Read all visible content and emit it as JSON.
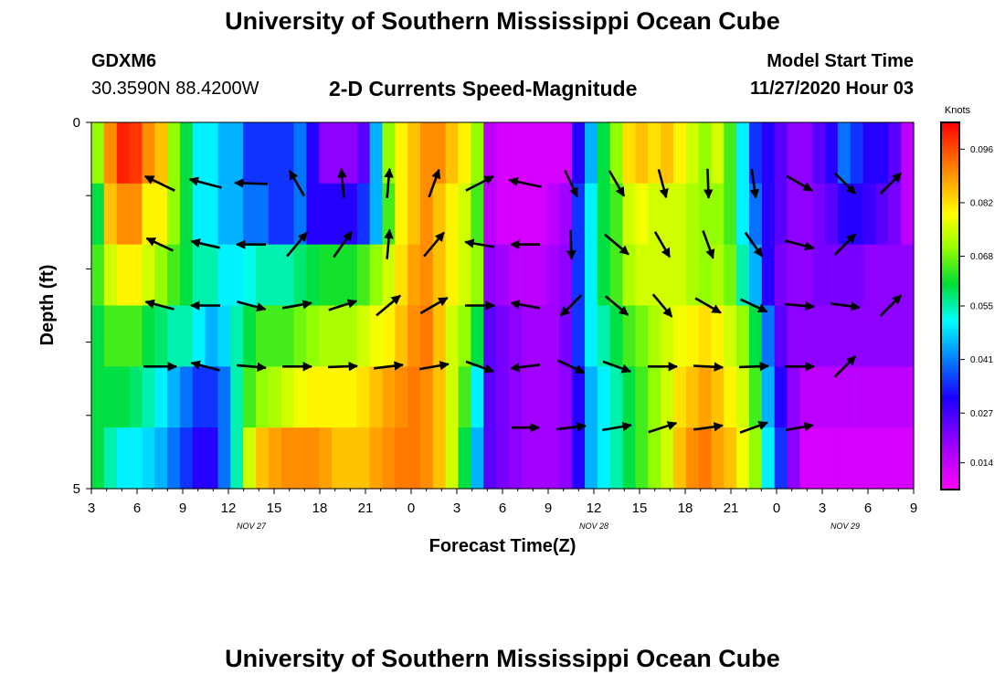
{
  "header": {
    "title": "University of Southern Mississippi Ocean Cube",
    "station_id": "GDXM6",
    "coords": "30.3590N 88.4200W",
    "plot_title": "2-D Currents Speed-Magnitude",
    "model_start_label": "Model Start Time",
    "model_start_value": "11/27/2020 Hour 03"
  },
  "footer": {
    "title": "University of Southern Mississippi Ocean Cube"
  },
  "chart_data": {
    "type": "heatmap",
    "title": "2-D Currents Speed-Magnitude",
    "xlabel": "Forecast Time(Z)",
    "ylabel": "Depth (ft)",
    "x_tick_labels": [
      "3",
      "6",
      "9",
      "12",
      "15",
      "18",
      "21",
      "0",
      "3",
      "6",
      "9",
      "12",
      "15",
      "18",
      "21",
      "0",
      "3",
      "6",
      "9"
    ],
    "y_tick_labels": [
      "0",
      "5"
    ],
    "ylim": [
      0,
      5
    ],
    "hours_span": 54,
    "date_labels": [
      {
        "text": "NOV 27",
        "hour": 10.5
      },
      {
        "text": "NOV 28",
        "hour": 33
      },
      {
        "text": "NOV 29",
        "hour": 49.5
      }
    ],
    "colorbar": {
      "label": "Knots",
      "min": 0.007,
      "max": 0.103,
      "tick_values": [
        "0.096",
        "0.082",
        "0.068",
        "0.055",
        "0.041",
        "0.027",
        "0.014"
      ]
    },
    "speed_rows": [
      [
        0.07,
        0.09,
        0.1,
        0.098,
        0.09,
        0.085,
        0.07,
        0.06,
        0.05,
        0.05,
        0.045,
        0.045,
        0.035,
        0.035,
        0.035,
        0.035,
        0.04,
        0.03,
        0.02,
        0.02,
        0.02,
        0.025,
        0.045,
        0.07,
        0.08,
        0.085,
        0.09,
        0.09,
        0.085,
        0.08,
        0.07,
        0.015,
        0.012,
        0.012,
        0.012,
        0.012,
        0.012,
        0.012,
        0.03,
        0.045,
        0.06,
        0.07,
        0.082,
        0.085,
        0.082,
        0.085,
        0.08,
        0.075,
        0.07,
        0.075,
        0.065,
        0.05,
        0.035,
        0.03,
        0.025,
        0.02,
        0.02,
        0.025,
        0.03,
        0.04,
        0.035,
        0.03,
        0.03,
        0.025,
        0.015
      ],
      [
        0.06,
        0.085,
        0.09,
        0.09,
        0.08,
        0.08,
        0.07,
        0.06,
        0.05,
        0.05,
        0.045,
        0.045,
        0.04,
        0.04,
        0.035,
        0.035,
        0.04,
        0.03,
        0.03,
        0.03,
        0.03,
        0.035,
        0.045,
        0.065,
        0.08,
        0.085,
        0.09,
        0.085,
        0.08,
        0.075,
        0.065,
        0.015,
        0.012,
        0.012,
        0.012,
        0.012,
        0.015,
        0.018,
        0.035,
        0.05,
        0.06,
        0.065,
        0.075,
        0.078,
        0.075,
        0.075,
        0.075,
        0.072,
        0.07,
        0.07,
        0.065,
        0.05,
        0.04,
        0.03,
        0.025,
        0.02,
        0.02,
        0.022,
        0.025,
        0.03,
        0.03,
        0.028,
        0.025,
        0.022,
        0.015
      ],
      [
        0.065,
        0.075,
        0.08,
        0.08,
        0.075,
        0.07,
        0.065,
        0.06,
        0.055,
        0.055,
        0.05,
        0.05,
        0.052,
        0.055,
        0.055,
        0.055,
        0.058,
        0.06,
        0.062,
        0.062,
        0.062,
        0.065,
        0.07,
        0.075,
        0.082,
        0.088,
        0.09,
        0.085,
        0.08,
        0.075,
        0.07,
        0.02,
        0.018,
        0.015,
        0.015,
        0.015,
        0.018,
        0.02,
        0.035,
        0.05,
        0.06,
        0.065,
        0.072,
        0.075,
        0.075,
        0.075,
        0.075,
        0.072,
        0.07,
        0.072,
        0.068,
        0.055,
        0.045,
        0.03,
        0.022,
        0.02,
        0.02,
        0.022,
        0.022,
        0.022,
        0.022,
        0.02,
        0.02,
        0.02,
        0.02
      ],
      [
        0.06,
        0.065,
        0.065,
        0.065,
        0.06,
        0.058,
        0.055,
        0.055,
        0.05,
        0.045,
        0.048,
        0.055,
        0.06,
        0.065,
        0.065,
        0.065,
        0.068,
        0.07,
        0.072,
        0.072,
        0.072,
        0.075,
        0.078,
        0.08,
        0.085,
        0.09,
        0.092,
        0.085,
        0.075,
        0.07,
        0.06,
        0.025,
        0.022,
        0.02,
        0.018,
        0.018,
        0.018,
        0.022,
        0.035,
        0.05,
        0.055,
        0.06,
        0.065,
        0.068,
        0.072,
        0.075,
        0.078,
        0.08,
        0.082,
        0.08,
        0.075,
        0.07,
        0.06,
        0.04,
        0.025,
        0.02,
        0.02,
        0.02,
        0.02,
        0.02,
        0.02,
        0.02,
        0.02,
        0.02,
        0.02
      ],
      [
        0.06,
        0.06,
        0.06,
        0.058,
        0.055,
        0.05,
        0.045,
        0.04,
        0.035,
        0.035,
        0.04,
        0.055,
        0.065,
        0.07,
        0.072,
        0.075,
        0.078,
        0.08,
        0.08,
        0.08,
        0.08,
        0.082,
        0.085,
        0.088,
        0.09,
        0.092,
        0.09,
        0.085,
        0.075,
        0.065,
        0.05,
        0.025,
        0.022,
        0.02,
        0.018,
        0.018,
        0.018,
        0.02,
        0.03,
        0.045,
        0.05,
        0.055,
        0.06,
        0.065,
        0.07,
        0.075,
        0.082,
        0.085,
        0.088,
        0.085,
        0.08,
        0.075,
        0.065,
        0.045,
        0.03,
        0.02,
        0.015,
        0.015,
        0.015,
        0.015,
        0.015,
        0.015,
        0.015,
        0.015,
        0.015
      ],
      [
        0.06,
        0.055,
        0.05,
        0.05,
        0.048,
        0.045,
        0.04,
        0.035,
        0.03,
        0.03,
        0.04,
        0.055,
        0.075,
        0.085,
        0.088,
        0.09,
        0.09,
        0.09,
        0.088,
        0.085,
        0.085,
        0.085,
        0.088,
        0.09,
        0.092,
        0.092,
        0.09,
        0.085,
        0.075,
        0.06,
        0.045,
        0.025,
        0.022,
        0.02,
        0.018,
        0.018,
        0.018,
        0.02,
        0.03,
        0.045,
        0.05,
        0.055,
        0.06,
        0.065,
        0.07,
        0.075,
        0.085,
        0.09,
        0.092,
        0.088,
        0.085,
        0.078,
        0.07,
        0.05,
        0.035,
        0.02,
        0.012,
        0.012,
        0.012,
        0.012,
        0.012,
        0.012,
        0.012,
        0.012,
        0.012
      ]
    ],
    "vectors": [
      [],
      [
        {
          "hour": 4.5,
          "dir": 296,
          "len": 36
        },
        {
          "hour": 7.5,
          "dir": 285,
          "len": 36
        },
        {
          "hour": 10.5,
          "dir": 272,
          "len": 36
        },
        {
          "hour": 13.5,
          "dir": 330,
          "len": 32
        },
        {
          "hour": 16.5,
          "dir": 355,
          "len": 32
        },
        {
          "hour": 19.5,
          "dir": 5,
          "len": 32
        },
        {
          "hour": 22.5,
          "dir": 20,
          "len": 32
        },
        {
          "hour": 25.5,
          "dir": 63,
          "len": 34
        },
        {
          "hour": 28.5,
          "dir": 282,
          "len": 36
        },
        {
          "hour": 31.5,
          "dir": 155,
          "len": 32
        },
        {
          "hour": 34.5,
          "dir": 150,
          "len": 32
        },
        {
          "hour": 37.5,
          "dir": 165,
          "len": 32
        },
        {
          "hour": 40.5,
          "dir": 178,
          "len": 32
        },
        {
          "hour": 43.5,
          "dir": 172,
          "len": 32
        },
        {
          "hour": 46.5,
          "dir": 120,
          "len": 32
        },
        {
          "hour": 49.5,
          "dir": 135,
          "len": 32
        },
        {
          "hour": 52.5,
          "dir": 45,
          "len": 32
        }
      ],
      [
        {
          "hour": 4.5,
          "dir": 295,
          "len": 32
        },
        {
          "hour": 7.5,
          "dir": 283,
          "len": 32
        },
        {
          "hour": 10.5,
          "dir": 270,
          "len": 32
        },
        {
          "hour": 13.5,
          "dir": 40,
          "len": 34
        },
        {
          "hour": 16.5,
          "dir": 35,
          "len": 34
        },
        {
          "hour": 19.5,
          "dir": 5,
          "len": 32
        },
        {
          "hour": 22.5,
          "dir": 40,
          "len": 34
        },
        {
          "hour": 25.5,
          "dir": 280,
          "len": 32
        },
        {
          "hour": 28.5,
          "dir": 270,
          "len": 32
        },
        {
          "hour": 31.5,
          "dir": 178,
          "len": 32
        },
        {
          "hour": 34.5,
          "dir": 130,
          "len": 34
        },
        {
          "hour": 37.5,
          "dir": 150,
          "len": 32
        },
        {
          "hour": 40.5,
          "dir": 160,
          "len": 32
        },
        {
          "hour": 43.5,
          "dir": 145,
          "len": 32
        },
        {
          "hour": 46.5,
          "dir": 105,
          "len": 32
        },
        {
          "hour": 49.5,
          "dir": 45,
          "len": 32
        }
      ],
      [
        {
          "hour": 4.5,
          "dir": 285,
          "len": 32
        },
        {
          "hour": 7.5,
          "dir": 270,
          "len": 32
        },
        {
          "hour": 10.5,
          "dir": 105,
          "len": 32
        },
        {
          "hour": 13.5,
          "dir": 80,
          "len": 32
        },
        {
          "hour": 16.5,
          "dir": 72,
          "len": 32
        },
        {
          "hour": 19.5,
          "dir": 50,
          "len": 34
        },
        {
          "hour": 22.5,
          "dir": 60,
          "len": 34
        },
        {
          "hour": 25.5,
          "dir": 90,
          "len": 32
        },
        {
          "hour": 28.5,
          "dir": 280,
          "len": 32
        },
        {
          "hour": 31.5,
          "dir": 225,
          "len": 32
        },
        {
          "hour": 34.5,
          "dir": 130,
          "len": 32
        },
        {
          "hour": 37.5,
          "dir": 140,
          "len": 32
        },
        {
          "hour": 40.5,
          "dir": 120,
          "len": 32
        },
        {
          "hour": 43.5,
          "dir": 115,
          "len": 32
        },
        {
          "hour": 46.5,
          "dir": 95,
          "len": 32
        },
        {
          "hour": 49.5,
          "dir": 98,
          "len": 32
        },
        {
          "hour": 52.5,
          "dir": 45,
          "len": 32
        }
      ],
      [
        {
          "hour": 4.5,
          "dir": 90,
          "len": 36
        },
        {
          "hour": 7.5,
          "dir": 285,
          "len": 32
        },
        {
          "hour": 10.5,
          "dir": 95,
          "len": 32
        },
        {
          "hour": 13.5,
          "dir": 90,
          "len": 32
        },
        {
          "hour": 16.5,
          "dir": 88,
          "len": 32
        },
        {
          "hour": 19.5,
          "dir": 83,
          "len": 32
        },
        {
          "hour": 22.5,
          "dir": 80,
          "len": 32
        },
        {
          "hour": 25.5,
          "dir": 110,
          "len": 32
        },
        {
          "hour": 28.5,
          "dir": 263,
          "len": 32
        },
        {
          "hour": 31.5,
          "dir": 115,
          "len": 32
        },
        {
          "hour": 34.5,
          "dir": 110,
          "len": 32
        },
        {
          "hour": 37.5,
          "dir": 90,
          "len": 32
        },
        {
          "hour": 40.5,
          "dir": 93,
          "len": 32
        },
        {
          "hour": 43.5,
          "dir": 88,
          "len": 32
        },
        {
          "hour": 46.5,
          "dir": 90,
          "len": 32
        },
        {
          "hour": 49.5,
          "dir": 45,
          "len": 32
        }
      ],
      [
        {
          "hour": 28.5,
          "dir": 90,
          "len": 30
        },
        {
          "hour": 31.5,
          "dir": 83,
          "len": 32
        },
        {
          "hour": 34.5,
          "dir": 80,
          "len": 32
        },
        {
          "hour": 37.5,
          "dir": 72,
          "len": 32
        },
        {
          "hour": 40.5,
          "dir": 82,
          "len": 32
        },
        {
          "hour": 43.5,
          "dir": 70,
          "len": 32
        },
        {
          "hour": 46.5,
          "dir": 80,
          "len": 30
        }
      ]
    ]
  }
}
